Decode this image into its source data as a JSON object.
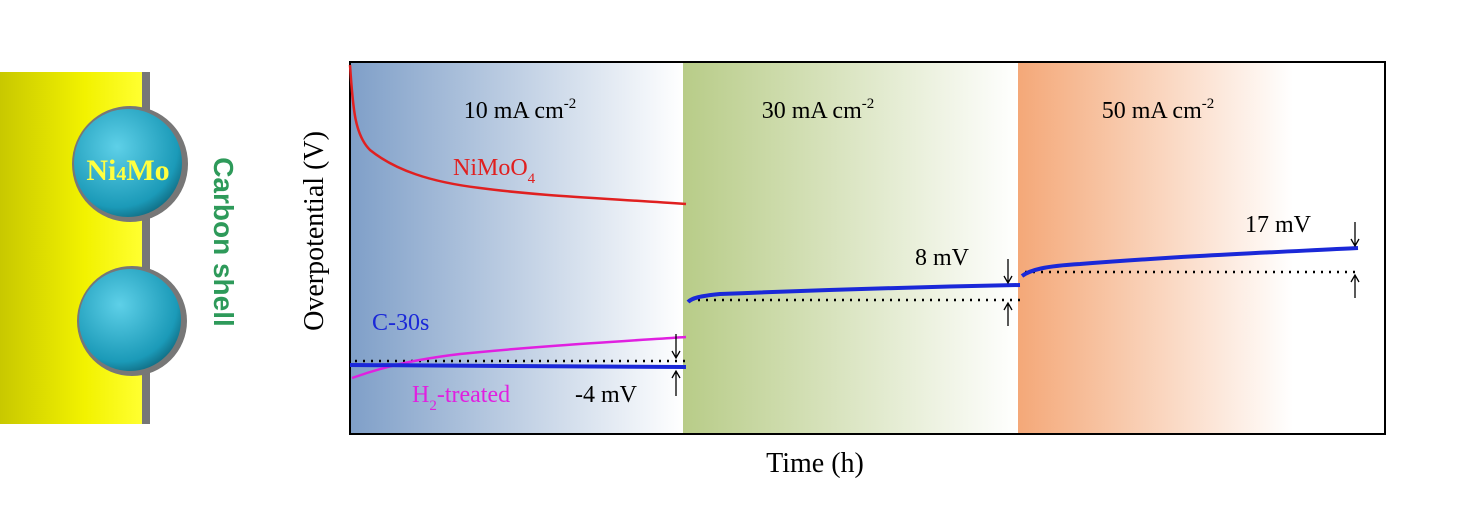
{
  "illustration": {
    "particle_label": {
      "base": "Ni",
      "subscript": "4",
      "rest": "Mo"
    },
    "shell_label": "Carbon shell"
  },
  "chart": {
    "y_label": "Overpotential (V)",
    "x_label": "Time (h)",
    "panels": [
      {
        "text": "10 mA cm",
        "exponent": "-2"
      },
      {
        "text": "30 mA cm",
        "exponent": "-2"
      },
      {
        "text": "50 mA cm",
        "exponent": "-2"
      }
    ],
    "curve_labels": {
      "nimoo": {
        "base": "NiMoO",
        "subscript": "4"
      },
      "c30s": "C-30s",
      "h2": {
        "base": "H",
        "subscript": "2",
        "rest": "-treated"
      }
    },
    "annotations": [
      "-4 mV",
      "8 mV",
      "17 mV"
    ]
  }
}
